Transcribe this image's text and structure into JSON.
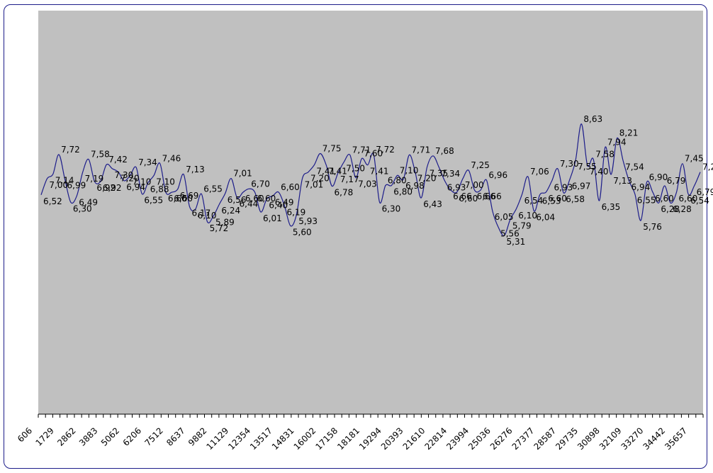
{
  "chart_data": {
    "type": "line",
    "title": "",
    "xlabel": "",
    "ylabel": "",
    "x_tick_labels": [
      "606",
      "1729",
      "2862",
      "3883",
      "5062",
      "6206",
      "7512",
      "8637",
      "9882",
      "11129",
      "12354",
      "13517",
      "14831",
      "16002",
      "17158",
      "18181",
      "19294",
      "20393",
      "21610",
      "22814",
      "23994",
      "25036",
      "26276",
      "27377",
      "28587",
      "29735",
      "30898",
      "32109",
      "33270",
      "34442",
      "35657"
    ],
    "ylim": [
      0,
      12
    ],
    "grid": false,
    "legend": "none",
    "colors": {
      "line": "#1c1c8a",
      "plot_bg": "#c0c0c0",
      "frame": "#1c1c8a"
    },
    "series": [
      {
        "values": [
          6.52,
          7.0,
          7.14,
          7.72,
          6.99,
          6.3,
          6.49,
          7.19,
          7.58,
          6.92,
          6.92,
          7.42,
          7.3,
          7.2,
          6.94,
          7.1,
          7.34,
          6.55,
          6.88,
          7.1,
          7.46,
          6.6,
          6.6,
          6.69,
          7.13,
          6.17,
          6.1,
          6.55,
          5.72,
          5.89,
          6.24,
          6.56,
          7.01,
          6.44,
          6.6,
          6.7,
          6.6,
          6.01,
          6.4,
          6.49,
          6.6,
          6.19,
          5.6,
          5.93,
          7.01,
          7.2,
          7.41,
          7.75,
          7.41,
          6.78,
          7.17,
          7.5,
          7.71,
          7.03,
          7.6,
          7.41,
          7.72,
          6.3,
          6.8,
          6.8,
          7.1,
          6.98,
          7.71,
          7.2,
          6.43,
          7.35,
          7.68,
          7.34,
          6.93,
          6.66,
          6.6,
          7.0,
          7.25,
          6.66,
          6.66,
          6.96,
          6.05,
          5.56,
          5.31,
          5.79,
          6.1,
          6.54,
          7.06,
          6.04,
          6.53,
          6.6,
          6.93,
          7.3,
          6.58,
          6.97,
          7.55,
          8.63,
          7.4,
          7.58,
          6.35,
          7.94,
          7.13,
          8.21,
          7.54,
          6.94,
          6.55,
          5.76,
          6.9,
          6.6,
          6.28,
          6.79,
          6.28,
          6.6,
          7.45,
          6.54,
          6.79,
          7.2
        ]
      }
    ]
  }
}
